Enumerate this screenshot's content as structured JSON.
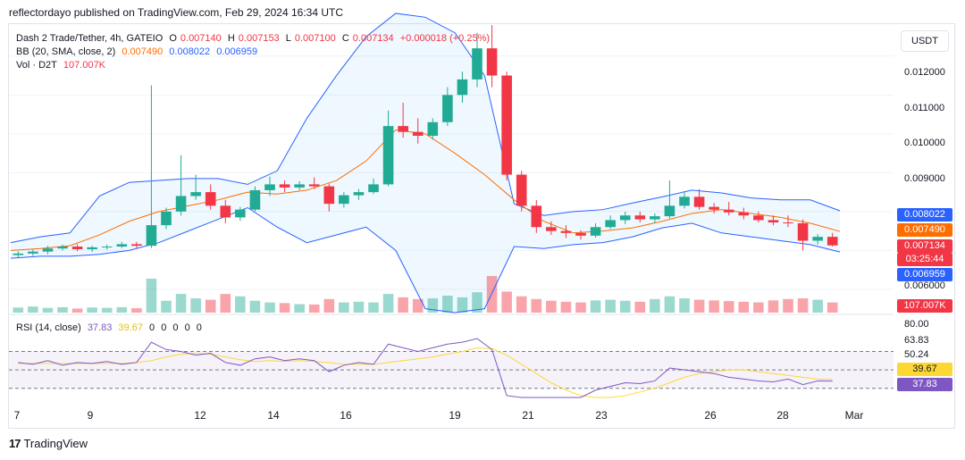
{
  "publisher_line": "reflectordayo published on TradingView.com, Feb 29, 2024 16:34 UTC",
  "footer": {
    "brand": "TradingView",
    "logo_text": "17"
  },
  "legend": {
    "symbol": "Dash 2 Trade/Tether, 4h, GATEIO",
    "ohlc": {
      "o_label": "O",
      "o": "0.007140",
      "h_label": "H",
      "h": "0.007153",
      "l_label": "L",
      "l": "0.007100",
      "c_label": "C",
      "c": "0.007134",
      "change": "+0.000018 (+0.25%)"
    },
    "bb_label": "BB (20, SMA, close, 2)",
    "bb_values": {
      "basis": "0.007490",
      "upper": "0.008022",
      "lower": "0.006959"
    },
    "vol_label": "Vol · D2T",
    "vol_value": "107.007K",
    "rsi_label": "RSI (14, close)",
    "rsi_value": "37.83",
    "rsi_ma_value": "39.67",
    "rsi_extra_values": [
      "0",
      "0",
      "0",
      "0",
      "0"
    ]
  },
  "currency_button": "USDT",
  "price_axis_ticks": [
    "0.012000",
    "0.011000",
    "0.010000",
    "0.009000",
    "0.006000"
  ],
  "price_tags": {
    "upper": "0.008022",
    "basis": "0.007490",
    "close": "0.007134",
    "countdown": "03:25:44",
    "lower": "0.006959",
    "volume": "107.007K"
  },
  "rsi_axis_ticks": [
    "80.00",
    "63.83",
    "50.24"
  ],
  "rsi_tags": {
    "ma": "39.67",
    "rsi": "37.83"
  },
  "x_axis_labels": [
    "7",
    "9",
    "12",
    "14",
    "16",
    "19",
    "21",
    "23",
    "26",
    "28",
    "Mar"
  ],
  "colors": {
    "up": "#22ab94",
    "down": "#f23645",
    "basis": "#ff6d00",
    "band": "#2962ff",
    "rsi": "#7e57c2",
    "rsi_ma": "#fdd835",
    "band_fill": "#2196f3"
  },
  "chart_data": {
    "type": "candlestick",
    "title": "Dash 2 Trade/Tether, 4h, GATEIO",
    "timeframe": "4h",
    "x_range": [
      "Feb 7",
      "Mar 1"
    ],
    "y_range": [
      0.0054,
      0.0128
    ],
    "candles_ohlc_sampled": [
      [
        0.00688,
        0.00698,
        0.00682,
        0.00692
      ],
      [
        0.00692,
        0.00702,
        0.00686,
        0.00697
      ],
      [
        0.00697,
        0.00712,
        0.0069,
        0.00705
      ],
      [
        0.00705,
        0.00715,
        0.007,
        0.0071
      ],
      [
        0.0071,
        0.00716,
        0.00698,
        0.00703
      ],
      [
        0.00703,
        0.00712,
        0.00696,
        0.00708
      ],
      [
        0.00708,
        0.00715,
        0.00702,
        0.0071
      ],
      [
        0.0071,
        0.00722,
        0.00706,
        0.00716
      ],
      [
        0.00716,
        0.00722,
        0.00706,
        0.00712
      ],
      [
        0.00712,
        0.01125,
        0.00706,
        0.00765
      ],
      [
        0.00765,
        0.0081,
        0.00755,
        0.008
      ],
      [
        0.008,
        0.00945,
        0.0079,
        0.0084
      ],
      [
        0.0084,
        0.00895,
        0.0083,
        0.0085
      ],
      [
        0.0085,
        0.0087,
        0.00805,
        0.00815
      ],
      [
        0.00815,
        0.0083,
        0.0077,
        0.00785
      ],
      [
        0.00785,
        0.00812,
        0.00776,
        0.00805
      ],
      [
        0.00805,
        0.00865,
        0.008,
        0.00855
      ],
      [
        0.00855,
        0.0089,
        0.0084,
        0.0087
      ],
      [
        0.0087,
        0.0088,
        0.0085,
        0.00862
      ],
      [
        0.00862,
        0.00878,
        0.00855,
        0.0087
      ],
      [
        0.0087,
        0.00888,
        0.00858,
        0.00865
      ],
      [
        0.00865,
        0.00872,
        0.008,
        0.0082
      ],
      [
        0.0082,
        0.0085,
        0.0081,
        0.00842
      ],
      [
        0.00842,
        0.00858,
        0.0083,
        0.0085
      ],
      [
        0.0085,
        0.00885,
        0.00845,
        0.0087
      ],
      [
        0.0087,
        0.0106,
        0.00865,
        0.0102
      ],
      [
        0.0102,
        0.0108,
        0.0099,
        0.01005
      ],
      [
        0.01005,
        0.0104,
        0.00975,
        0.00995
      ],
      [
        0.00995,
        0.0104,
        0.00985,
        0.0103
      ],
      [
        0.0103,
        0.0112,
        0.0102,
        0.011
      ],
      [
        0.011,
        0.0116,
        0.0108,
        0.0114
      ],
      [
        0.0114,
        0.0126,
        0.0112,
        0.0122
      ],
      [
        0.0122,
        0.01285,
        0.0112,
        0.0115
      ],
      [
        0.0115,
        0.0116,
        0.0088,
        0.00895
      ],
      [
        0.00895,
        0.00905,
        0.008,
        0.00815
      ],
      [
        0.00815,
        0.0083,
        0.00745,
        0.0076
      ],
      [
        0.0076,
        0.00775,
        0.0074,
        0.0075
      ],
      [
        0.0075,
        0.00765,
        0.00732,
        0.00745
      ],
      [
        0.00745,
        0.00752,
        0.00728,
        0.00738
      ],
      [
        0.00738,
        0.0077,
        0.00733,
        0.0076
      ],
      [
        0.0076,
        0.0079,
        0.00755,
        0.00778
      ],
      [
        0.00778,
        0.008,
        0.00768,
        0.0079
      ],
      [
        0.0079,
        0.008,
        0.00772,
        0.0078
      ],
      [
        0.0078,
        0.00795,
        0.0077,
        0.00788
      ],
      [
        0.00788,
        0.0088,
        0.00782,
        0.00815
      ],
      [
        0.00815,
        0.0085,
        0.00808,
        0.00838
      ],
      [
        0.00838,
        0.00858,
        0.00805,
        0.00812
      ],
      [
        0.00812,
        0.00822,
        0.00795,
        0.00805
      ],
      [
        0.00805,
        0.00825,
        0.0079,
        0.00798
      ],
      [
        0.00798,
        0.0081,
        0.0078,
        0.0079
      ],
      [
        0.0079,
        0.008,
        0.00772,
        0.00778
      ],
      [
        0.00778,
        0.0079,
        0.00765,
        0.00772
      ],
      [
        0.00772,
        0.0079,
        0.0076,
        0.0077
      ],
      [
        0.0077,
        0.0078,
        0.007,
        0.00725
      ],
      [
        0.00725,
        0.00742,
        0.00715,
        0.00735
      ],
      [
        0.00735,
        0.00745,
        0.0071,
        0.00713
      ]
    ],
    "bollinger": {
      "basis": [
        0.007,
        0.00705,
        0.00712,
        0.0074,
        0.00775,
        0.008,
        0.00815,
        0.0083,
        0.0085,
        0.00845,
        0.00855,
        0.0088,
        0.0093,
        0.0101,
        0.01,
        0.0095,
        0.00895,
        0.0083,
        0.00775,
        0.00745,
        0.0075,
        0.00758,
        0.00775,
        0.00795,
        0.00805,
        0.00795,
        0.00785,
        0.0077,
        0.00749
      ],
      "upper": [
        0.0072,
        0.00735,
        0.00745,
        0.0084,
        0.00875,
        0.0088,
        0.00885,
        0.00885,
        0.0087,
        0.00905,
        0.0104,
        0.0115,
        0.0125,
        0.0131,
        0.013,
        0.0126,
        0.0115,
        0.0082,
        0.0079,
        0.008,
        0.00805,
        0.00822,
        0.00838,
        0.00855,
        0.00848,
        0.00835,
        0.0083,
        0.0083,
        0.00802
      ],
      "lower": [
        0.0068,
        0.00685,
        0.00685,
        0.0069,
        0.007,
        0.0072,
        0.0075,
        0.0078,
        0.0081,
        0.0076,
        0.0072,
        0.0074,
        0.0076,
        0.007,
        0.0055,
        0.0054,
        0.0055,
        0.0071,
        0.00705,
        0.00715,
        0.0072,
        0.00735,
        0.00758,
        0.0077,
        0.00745,
        0.00735,
        0.00725,
        0.00715,
        0.00696
      ]
    },
    "volume_relative": [
      0.15,
      0.18,
      0.14,
      0.16,
      0.12,
      0.15,
      0.14,
      0.16,
      0.13,
      1.0,
      0.35,
      0.55,
      0.42,
      0.38,
      0.55,
      0.48,
      0.35,
      0.3,
      0.28,
      0.25,
      0.24,
      0.4,
      0.3,
      0.32,
      0.3,
      0.55,
      0.45,
      0.4,
      0.42,
      0.5,
      0.45,
      0.6,
      1.08,
      0.62,
      0.48,
      0.4,
      0.35,
      0.32,
      0.3,
      0.36,
      0.38,
      0.35,
      0.32,
      0.4,
      0.48,
      0.42,
      0.38,
      0.36,
      0.34,
      0.32,
      0.3,
      0.36,
      0.4,
      0.42,
      0.38,
      0.3
    ],
    "rsi": [
      58,
      56,
      60,
      55,
      58,
      57,
      59,
      56,
      58,
      80,
      72,
      70,
      66,
      68,
      58,
      55,
      62,
      64,
      60,
      62,
      60,
      48,
      55,
      58,
      56,
      78,
      74,
      70,
      74,
      78,
      80,
      84,
      72,
      22,
      16,
      15,
      17,
      16,
      18,
      28,
      32,
      36,
      35,
      38,
      52,
      50,
      48,
      46,
      42,
      40,
      38,
      37,
      40,
      34,
      38,
      37.83
    ],
    "rsi_ma": [
      57,
      57,
      57,
      57,
      57,
      57,
      57,
      57,
      58,
      60,
      64,
      67,
      68,
      67,
      64,
      61,
      59,
      60,
      59,
      60,
      59,
      58,
      56,
      56,
      56,
      58,
      60,
      62,
      64,
      67,
      70,
      74,
      73,
      66,
      56,
      46,
      36,
      28,
      22,
      20,
      20,
      22,
      26,
      30,
      36,
      42,
      46,
      48,
      50,
      50,
      48,
      46,
      44,
      42,
      40,
      39.67
    ],
    "rsi_levels": {
      "upper": 70,
      "middle": 50,
      "lower": 30
    }
  }
}
